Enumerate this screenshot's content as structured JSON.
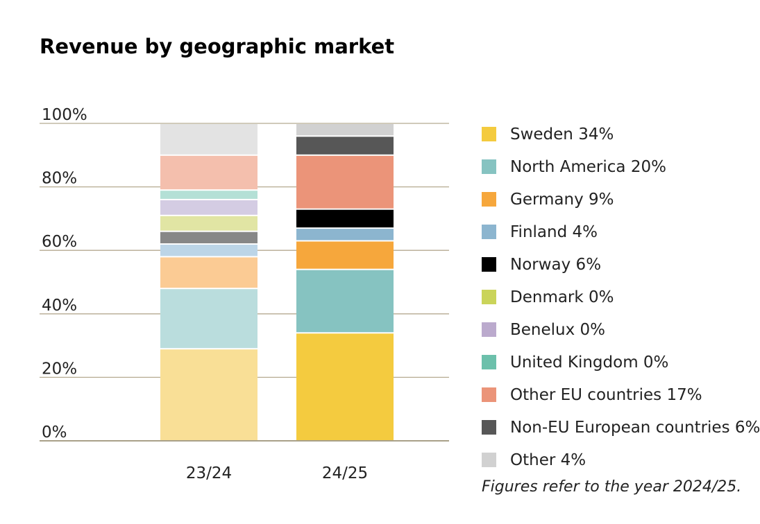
{
  "chart_data": {
    "type": "stacked-bar",
    "title": "Revenue by geographic market",
    "categories": [
      "23/24",
      "24/25"
    ],
    "y_ticks": [
      "0%",
      "20%",
      "40%",
      "60%",
      "80%",
      "100%"
    ],
    "ylim": [
      0,
      100
    ],
    "legend_placement": "right",
    "series": [
      {
        "name": "Sweden 34%",
        "color": "#F4CB3F",
        "color_prior": "#F9DF96",
        "values": [
          29,
          34
        ]
      },
      {
        "name": "North America 20%",
        "color": "#86C3C1",
        "color_prior": "#BADDDD",
        "values": [
          19,
          20
        ]
      },
      {
        "name": "Germany 9%",
        "color": "#F6A73C",
        "color_prior": "#FBCB94",
        "values": [
          10,
          9
        ]
      },
      {
        "name": "Finland 4%",
        "color": "#8CB5CF",
        "color_prior": "#BCD5E7",
        "values": [
          4,
          4
        ]
      },
      {
        "name": "Norway 6%",
        "color": "#000000",
        "color_prior": "#878787",
        "values": [
          4,
          6
        ]
      },
      {
        "name": "Denmark 0%",
        "color": "#CAD45A",
        "color_prior": "#E1E5A4",
        "values": [
          5,
          0
        ]
      },
      {
        "name": "Benelux 0%",
        "color": "#BBAACD",
        "color_prior": "#D4CCE3",
        "values": [
          5,
          0
        ]
      },
      {
        "name": "United Kingdom 0%",
        "color": "#6CC0AB",
        "color_prior": "#B4E0D6",
        "values": [
          3,
          0
        ]
      },
      {
        "name": "Other EU countries 17%",
        "color": "#EB9479",
        "color_prior": "#F4BFAD",
        "values": [
          11,
          17
        ]
      },
      {
        "name": "Non-EU European countries 6%",
        "color": "#575757",
        "color_prior": "#575757",
        "values": [
          0,
          6
        ]
      },
      {
        "name": "Other 4%",
        "color": "#D1D1D1",
        "color_prior": "#E3E3E3",
        "values": [
          10,
          4
        ]
      }
    ]
  },
  "footnote": "Figures refer to the year 2024/25.",
  "colors": {
    "gridline": "#B5AA90",
    "axis": "#8C8060"
  }
}
